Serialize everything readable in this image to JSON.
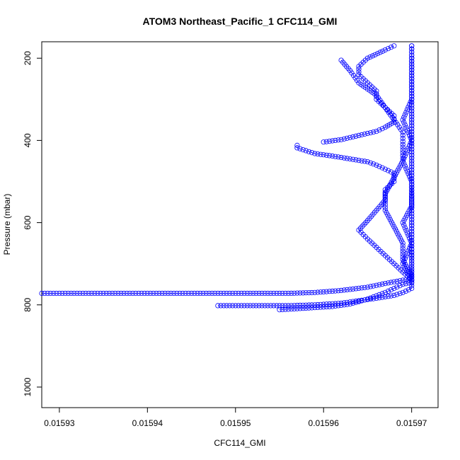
{
  "chart_data": {
    "type": "scatter",
    "title": "ATOM3 Northeast_Pacific_1 CFC114_GMI",
    "xlabel": "CFC114_GMI",
    "ylabel": "Pressure (mbar)",
    "xlim": [
      0.015928,
      0.015973
    ],
    "ylim": [
      1050,
      160
    ],
    "y_reversed": true,
    "x_ticks": [
      "0.01593",
      "0.01594",
      "0.01595",
      "0.01596",
      "0.01597"
    ],
    "x_tick_values": [
      0.01593,
      0.01594,
      0.01595,
      0.01596,
      0.01597
    ],
    "y_ticks": [
      "200",
      "400",
      "600",
      "800",
      "1000"
    ],
    "y_tick_values": [
      200,
      400,
      600,
      800,
      1000
    ],
    "marker": "open-circle",
    "color": "#0000ff",
    "grid": false,
    "series": [
      {
        "points": [
          [
            0.015928,
            772
          ],
          [
            0.015932,
            772
          ],
          [
            0.015936,
            772
          ],
          [
            0.01594,
            772
          ],
          [
            0.015944,
            772
          ],
          [
            0.015948,
            772
          ],
          [
            0.015952,
            772
          ],
          [
            0.015956,
            772
          ],
          [
            0.015959,
            770
          ],
          [
            0.015962,
            765
          ],
          [
            0.015965,
            757
          ],
          [
            0.015967,
            748
          ],
          [
            0.015969,
            740
          ],
          [
            0.01597,
            738
          ],
          [
            0.01597,
            700
          ],
          [
            0.01597,
            650
          ],
          [
            0.01597,
            600
          ],
          [
            0.01597,
            550
          ],
          [
            0.01597,
            500
          ],
          [
            0.01597,
            450
          ],
          [
            0.01597,
            400
          ],
          [
            0.01597,
            350
          ],
          [
            0.01597,
            300
          ],
          [
            0.01597,
            250
          ],
          [
            0.01597,
            200
          ],
          [
            0.01597,
            170
          ]
        ]
      },
      {
        "points": [
          [
            0.015948,
            802
          ],
          [
            0.015952,
            802
          ],
          [
            0.015956,
            802
          ],
          [
            0.015959,
            800
          ],
          [
            0.015962,
            796
          ],
          [
            0.015964,
            790
          ],
          [
            0.015966,
            784
          ],
          [
            0.015968,
            777
          ],
          [
            0.015969,
            770
          ],
          [
            0.01597,
            760
          ],
          [
            0.01597,
            740
          ],
          [
            0.015969,
            700
          ],
          [
            0.01597,
            650
          ],
          [
            0.015969,
            600
          ],
          [
            0.01597,
            560
          ],
          [
            0.01597,
            500
          ],
          [
            0.015969,
            450
          ],
          [
            0.01597,
            400
          ],
          [
            0.015969,
            350
          ],
          [
            0.01597,
            300
          ],
          [
            0.01597,
            250
          ],
          [
            0.01597,
            200
          ],
          [
            0.01597,
            170
          ]
        ]
      },
      {
        "points": [
          [
            0.015955,
            812
          ],
          [
            0.015958,
            808
          ],
          [
            0.015961,
            804
          ],
          [
            0.015963,
            798
          ],
          [
            0.015964,
            792
          ],
          [
            0.015965,
            786
          ],
          [
            0.015966,
            778
          ],
          [
            0.015967,
            770
          ],
          [
            0.015968,
            760
          ],
          [
            0.015969,
            750
          ],
          [
            0.01597,
            745
          ],
          [
            0.01597,
            740
          ],
          [
            0.01597,
            700
          ],
          [
            0.01597,
            680
          ],
          [
            0.01597,
            650
          ],
          [
            0.01597,
            600
          ],
          [
            0.01597,
            550
          ],
          [
            0.01597,
            500
          ],
          [
            0.01597,
            450
          ],
          [
            0.01597,
            400
          ],
          [
            0.01597,
            350
          ],
          [
            0.01597,
            300
          ],
          [
            0.01597,
            250
          ],
          [
            0.01597,
            200
          ]
        ]
      },
      {
        "points": [
          [
            0.015957,
            412
          ],
          [
            0.015957,
            418
          ],
          [
            0.015958,
            425
          ],
          [
            0.015959,
            432
          ],
          [
            0.015961,
            438
          ],
          [
            0.015963,
            445
          ],
          [
            0.015965,
            452
          ],
          [
            0.015966,
            460
          ],
          [
            0.015967,
            470
          ],
          [
            0.015968,
            480
          ],
          [
            0.015968,
            500
          ],
          [
            0.015967,
            520
          ],
          [
            0.015967,
            545
          ],
          [
            0.015966,
            570
          ],
          [
            0.015965,
            595
          ],
          [
            0.015964,
            618
          ],
          [
            0.015965,
            640
          ],
          [
            0.015966,
            660
          ],
          [
            0.015967,
            680
          ],
          [
            0.015968,
            700
          ],
          [
            0.015969,
            720
          ],
          [
            0.01597,
            740
          ]
        ]
      },
      {
        "points": [
          [
            0.01596,
            404
          ],
          [
            0.015962,
            398
          ],
          [
            0.015964,
            388
          ],
          [
            0.015966,
            378
          ],
          [
            0.015967,
            368
          ],
          [
            0.015968,
            355
          ],
          [
            0.015968,
            340
          ],
          [
            0.015967,
            320
          ],
          [
            0.015966,
            300
          ],
          [
            0.015966,
            280
          ],
          [
            0.015965,
            260
          ],
          [
            0.015964,
            240
          ],
          [
            0.015964,
            220
          ],
          [
            0.015965,
            200
          ],
          [
            0.015967,
            180
          ],
          [
            0.015968,
            170
          ]
        ]
      },
      {
        "points": [
          [
            0.015962,
            205
          ],
          [
            0.015963,
            230
          ],
          [
            0.015964,
            260
          ],
          [
            0.015966,
            290
          ],
          [
            0.015967,
            320
          ],
          [
            0.015968,
            350
          ],
          [
            0.015969,
            380
          ],
          [
            0.015969,
            410
          ],
          [
            0.015969,
            450
          ],
          [
            0.015968,
            490
          ],
          [
            0.015967,
            530
          ],
          [
            0.015967,
            570
          ],
          [
            0.015968,
            610
          ],
          [
            0.015969,
            650
          ],
          [
            0.015969,
            690
          ],
          [
            0.01597,
            730
          ]
        ]
      }
    ]
  }
}
